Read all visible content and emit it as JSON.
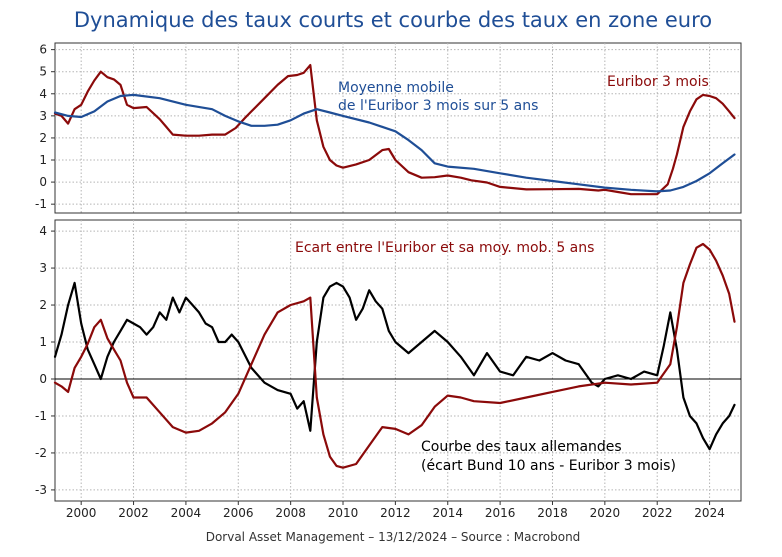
{
  "chart_data": [
    {
      "type": "line",
      "title": "Dynamique des taux courts et courbe des taux en zone euro",
      "xlim": [
        1999.0,
        2025.2
      ],
      "ylim": [
        -1.4,
        6.3
      ],
      "yticks": [
        -1,
        0,
        1,
        2,
        3,
        4,
        5,
        6
      ],
      "grid": true,
      "series": [
        {
          "name": "Euribor 3 mois",
          "color": "#8b0a0a",
          "x": [
            1999.0,
            1999.25,
            1999.5,
            1999.75,
            2000.0,
            2000.25,
            2000.5,
            2000.75,
            2001.0,
            2001.25,
            2001.5,
            2001.75,
            2002.0,
            2002.5,
            2003.0,
            2003.25,
            2003.5,
            2004.0,
            2004.5,
            2005.0,
            2005.5,
            2005.9,
            2006.25,
            2006.5,
            2007.0,
            2007.5,
            2007.9,
            2008.25,
            2008.5,
            2008.75,
            2009.0,
            2009.25,
            2009.5,
            2009.75,
            2010.0,
            2010.5,
            2011.0,
            2011.5,
            2011.75,
            2012.0,
            2012.5,
            2013.0,
            2013.5,
            2014.0,
            2014.5,
            2014.9,
            2015.5,
            2016.0,
            2017.0,
            2018.0,
            2019.0,
            2019.75,
            2020.0,
            2020.5,
            2021.0,
            2021.5,
            2022.0,
            2022.4,
            2022.6,
            2022.75,
            2023.0,
            2023.25,
            2023.5,
            2023.75,
            2024.0,
            2024.25,
            2024.5,
            2024.75,
            2024.95
          ],
          "y": [
            3.1,
            3.0,
            2.65,
            3.3,
            3.5,
            4.1,
            4.6,
            5.0,
            4.75,
            4.65,
            4.4,
            3.5,
            3.35,
            3.4,
            2.85,
            2.5,
            2.15,
            2.1,
            2.1,
            2.15,
            2.15,
            2.45,
            2.9,
            3.2,
            3.8,
            4.4,
            4.8,
            4.85,
            4.95,
            5.3,
            2.8,
            1.6,
            1.0,
            0.75,
            0.65,
            0.8,
            1.0,
            1.45,
            1.5,
            1.0,
            0.45,
            0.2,
            0.22,
            0.3,
            0.2,
            0.08,
            -0.02,
            -0.22,
            -0.33,
            -0.32,
            -0.31,
            -0.38,
            -0.35,
            -0.45,
            -0.55,
            -0.55,
            -0.55,
            -0.1,
            0.6,
            1.25,
            2.5,
            3.2,
            3.75,
            3.95,
            3.9,
            3.8,
            3.55,
            3.2,
            2.9
          ]
        },
        {
          "name": "Moyenne mobile de l'Euribor 3 mois sur 5 ans",
          "color": "#1f4e96",
          "x": [
            1999.0,
            1999.5,
            2000.0,
            2000.5,
            2001.0,
            2001.5,
            2002.0,
            2003.0,
            2004.0,
            2005.0,
            2005.5,
            2006.0,
            2006.5,
            2007.0,
            2007.5,
            2008.0,
            2008.5,
            2009.0,
            2009.5,
            2010.0,
            2011.0,
            2012.0,
            2012.5,
            2013.0,
            2013.5,
            2014.0,
            2015.0,
            2016.0,
            2017.0,
            2018.0,
            2019.0,
            2020.0,
            2021.0,
            2022.0,
            2022.5,
            2023.0,
            2023.5,
            2024.0,
            2024.5,
            2024.95
          ],
          "y": [
            3.15,
            3.0,
            2.95,
            3.2,
            3.65,
            3.9,
            3.95,
            3.8,
            3.5,
            3.3,
            3.0,
            2.75,
            2.55,
            2.55,
            2.6,
            2.8,
            3.1,
            3.3,
            3.15,
            3.0,
            2.7,
            2.3,
            1.9,
            1.45,
            0.85,
            0.7,
            0.6,
            0.4,
            0.2,
            0.05,
            -0.1,
            -0.25,
            -0.35,
            -0.42,
            -0.38,
            -0.22,
            0.05,
            0.4,
            0.85,
            1.25
          ]
        }
      ],
      "annotations": [
        {
          "text_lines": [
            "Moyenne mobile",
            "de l'Euribor 3 mois sur 5 ans"
          ],
          "color": "#1f4e96"
        },
        {
          "text_lines": [
            "Euribor 3 mois"
          ],
          "color": "#8b0a0a"
        }
      ]
    },
    {
      "type": "line",
      "xlim": [
        1999.0,
        2025.2
      ],
      "xticks": [
        2000,
        2002,
        2004,
        2006,
        2008,
        2010,
        2012,
        2014,
        2016,
        2018,
        2020,
        2022,
        2024
      ],
      "ylim": [
        -3.3,
        4.3
      ],
      "yticks": [
        -3,
        -2,
        -1,
        0,
        1,
        2,
        3,
        4
      ],
      "grid": true,
      "zero_line": true,
      "series": [
        {
          "name": "Courbe des taux allemandes (écart Bund 10 ans - Euribor 3 mois)",
          "color": "#000000",
          "x": [
            1999.0,
            1999.25,
            1999.5,
            1999.75,
            2000.0,
            2000.25,
            2000.5,
            2000.75,
            2001.0,
            2001.25,
            2001.5,
            2001.75,
            2002.0,
            2002.25,
            2002.5,
            2002.75,
            2003.0,
            2003.25,
            2003.5,
            2003.75,
            2004.0,
            2004.25,
            2004.5,
            2004.75,
            2005.0,
            2005.25,
            2005.5,
            2005.75,
            2006.0,
            2006.5,
            2007.0,
            2007.5,
            2008.0,
            2008.25,
            2008.5,
            2008.75,
            2009.0,
            2009.25,
            2009.5,
            2009.75,
            2010.0,
            2010.25,
            2010.5,
            2010.75,
            2011.0,
            2011.25,
            2011.5,
            2011.75,
            2012.0,
            2012.5,
            2013.0,
            2013.5,
            2014.0,
            2014.5,
            2015.0,
            2015.5,
            2016.0,
            2016.5,
            2017.0,
            2017.5,
            2018.0,
            2018.5,
            2019.0,
            2019.5,
            2019.75,
            2020.0,
            2020.5,
            2021.0,
            2021.5,
            2022.0,
            2022.25,
            2022.5,
            2022.75,
            2023.0,
            2023.25,
            2023.5,
            2023.75,
            2024.0,
            2024.25,
            2024.5,
            2024.75,
            2024.95
          ],
          "y": [
            0.6,
            1.2,
            2.0,
            2.6,
            1.5,
            0.8,
            0.4,
            0.0,
            0.6,
            1.0,
            1.3,
            1.6,
            1.5,
            1.4,
            1.2,
            1.4,
            1.8,
            1.6,
            2.2,
            1.8,
            2.2,
            2.0,
            1.8,
            1.5,
            1.4,
            1.0,
            1.0,
            1.2,
            1.0,
            0.3,
            -0.1,
            -0.3,
            -0.4,
            -0.8,
            -0.6,
            -1.4,
            1.0,
            2.2,
            2.5,
            2.6,
            2.5,
            2.2,
            1.6,
            1.9,
            2.4,
            2.1,
            1.9,
            1.3,
            1.0,
            0.7,
            1.0,
            1.3,
            1.0,
            0.6,
            0.1,
            0.7,
            0.2,
            0.1,
            0.6,
            0.5,
            0.7,
            0.5,
            0.4,
            -0.1,
            -0.2,
            0.0,
            0.1,
            0.0,
            0.2,
            0.1,
            0.9,
            1.8,
            0.8,
            -0.5,
            -1.0,
            -1.2,
            -1.6,
            -1.9,
            -1.5,
            -1.2,
            -1.0,
            -0.7
          ]
        },
        {
          "name": "Ecart entre l'Euribor et sa moy. mob. 5 ans",
          "color": "#8b0a0a",
          "x": [
            1999.0,
            1999.25,
            1999.5,
            1999.75,
            2000.0,
            2000.25,
            2000.5,
            2000.75,
            2001.0,
            2001.25,
            2001.5,
            2001.75,
            2002.0,
            2002.5,
            2003.0,
            2003.5,
            2004.0,
            2004.5,
            2005.0,
            2005.5,
            2006.0,
            2006.5,
            2007.0,
            2007.5,
            2008.0,
            2008.5,
            2008.75,
            2009.0,
            2009.25,
            2009.5,
            2009.75,
            2010.0,
            2010.5,
            2011.0,
            2011.5,
            2012.0,
            2012.5,
            2013.0,
            2013.5,
            2014.0,
            2014.5,
            2015.0,
            2016.0,
            2017.0,
            2018.0,
            2019.0,
            2020.0,
            2021.0,
            2022.0,
            2022.5,
            2022.75,
            2023.0,
            2023.25,
            2023.5,
            2023.75,
            2024.0,
            2024.25,
            2024.5,
            2024.75,
            2024.95
          ],
          "y": [
            -0.1,
            -0.2,
            -0.35,
            0.3,
            0.6,
            0.95,
            1.4,
            1.6,
            1.1,
            0.8,
            0.5,
            -0.1,
            -0.5,
            -0.5,
            -0.9,
            -1.3,
            -1.45,
            -1.4,
            -1.2,
            -0.9,
            -0.4,
            0.4,
            1.2,
            1.8,
            2.0,
            2.1,
            2.2,
            -0.5,
            -1.5,
            -2.1,
            -2.35,
            -2.4,
            -2.3,
            -1.8,
            -1.3,
            -1.35,
            -1.5,
            -1.25,
            -0.75,
            -0.45,
            -0.5,
            -0.6,
            -0.65,
            -0.5,
            -0.35,
            -0.2,
            -0.1,
            -0.15,
            -0.1,
            0.4,
            1.4,
            2.6,
            3.1,
            3.55,
            3.65,
            3.5,
            3.2,
            2.8,
            2.3,
            1.55
          ]
        }
      ],
      "annotations": [
        {
          "text_lines": [
            "Ecart entre l'Euribor et sa moy. mob. 5 ans"
          ],
          "color": "#8b0a0a"
        },
        {
          "text_lines": [
            "Courbe des taux allemandes",
            "(écart Bund 10 ans - Euribor 3 mois)"
          ],
          "color": "#000000"
        }
      ]
    }
  ],
  "footer": "Dorval Asset Management – 13/12/2024 –   Source : Macrobond"
}
